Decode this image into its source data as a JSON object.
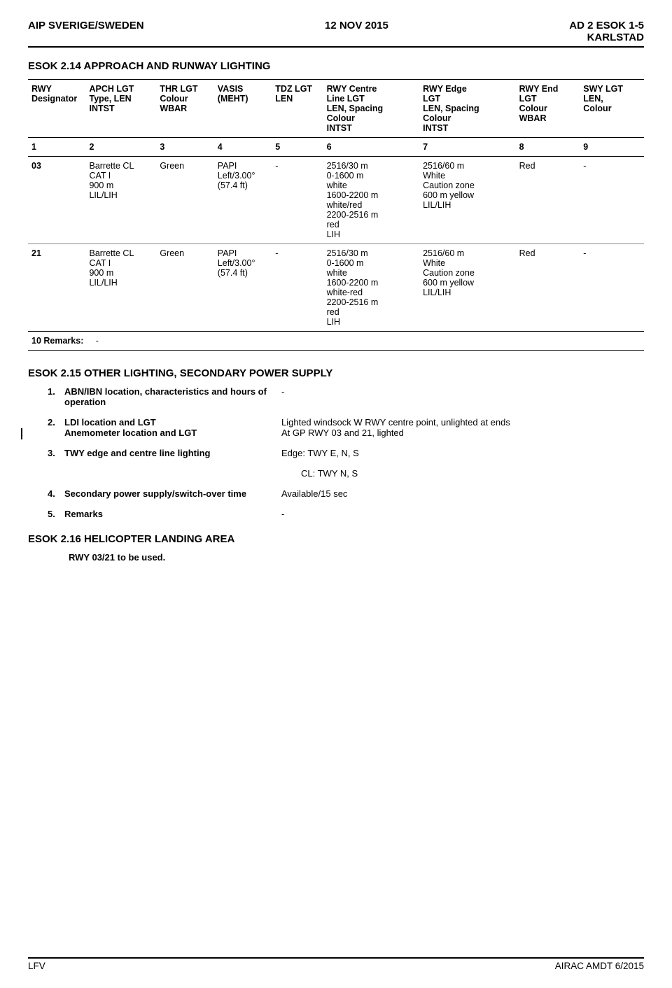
{
  "header": {
    "left": "AIP SVERIGE/SWEDEN",
    "center": "12 NOV 2015",
    "right_line1": "AD 2 ESOK 1-5",
    "right_line2": "KARLSTAD"
  },
  "sec214": {
    "title": "ESOK 2.14 APPROACH AND RUNWAY LIGHTING",
    "columns": [
      "RWY\nDesignator",
      "APCH LGT\nType, LEN\nINTST",
      "THR LGT\nColour\nWBAR",
      "VASIS\n(MEHT)",
      "TDZ LGT\nLEN",
      "RWY Centre\nLine LGT\nLEN, Spacing\nColour\nINTST",
      "RWY Edge\nLGT\nLEN, Spacing\nColour\nINTST",
      "RWY End\nLGT\nColour\nWBAR",
      "SWY LGT\nLEN,\nColour"
    ],
    "numrow": [
      "1",
      "2",
      "3",
      "4",
      "5",
      "6",
      "7",
      "8",
      "9"
    ],
    "rows": [
      {
        "c1": "03",
        "c2": "Barrette CL\nCAT I\n900 m\nLIL/LIH",
        "c3": "Green",
        "c4": "PAPI\nLeft/3.00°\n(57.4 ft)",
        "c5": "-",
        "c6": "2516/30 m\n0-1600 m\nwhite\n1600-2200 m\nwhite/red\n2200-2516 m\nred\nLIH",
        "c7": "2516/60 m\nWhite\nCaution zone\n600 m yellow\nLIL/LIH",
        "c8": "Red",
        "c9": "-"
      },
      {
        "c1": "21",
        "c2": "Barrette CL\nCAT I\n900 m\nLIL/LIH",
        "c3": "Green",
        "c4": "PAPI\nLeft/3.00°\n(57.4 ft)",
        "c5": "-",
        "c6": "2516/30 m\n0-1600 m\nwhite\n1600-2200 m\nwhite-red\n2200-2516 m\nred\nLIH",
        "c7": "2516/60 m\nWhite\nCaution zone\n600 m yellow\nLIL/LIH",
        "c8": "Red",
        "c9": "-"
      }
    ],
    "remarks_label": "10 Remarks:",
    "remarks_val": "-"
  },
  "sec215": {
    "title": "ESOK 2.15 OTHER LIGHTING, SECONDARY POWER SUPPLY",
    "items": [
      {
        "num": "1.",
        "label": "ABN/IBN location, characteristics and hours of operation",
        "val": "-"
      },
      {
        "num": "2.",
        "label": "LDI location and LGT\nAnemometer location and LGT",
        "val": "Lighted windsock W RWY centre point, unlighted at ends\nAt GP RWY 03 and 21, lighted"
      },
      {
        "num": "3.",
        "label": "TWY edge and centre line lighting",
        "val": "Edge:  TWY  E, N, S"
      },
      {
        "num": "4.",
        "label": "Secondary power supply/switch-over time",
        "val": "Available/15 sec"
      },
      {
        "num": "5.",
        "label": "Remarks",
        "val": "-"
      }
    ],
    "cl_line": "CL:      TWY  N, S"
  },
  "sec216": {
    "title": "ESOK 2.16 HELICOPTER LANDING AREA",
    "text": "RWY 03/21 to be used."
  },
  "footer": {
    "left": "LFV",
    "right": "AIRAC AMDT 6/2015"
  }
}
